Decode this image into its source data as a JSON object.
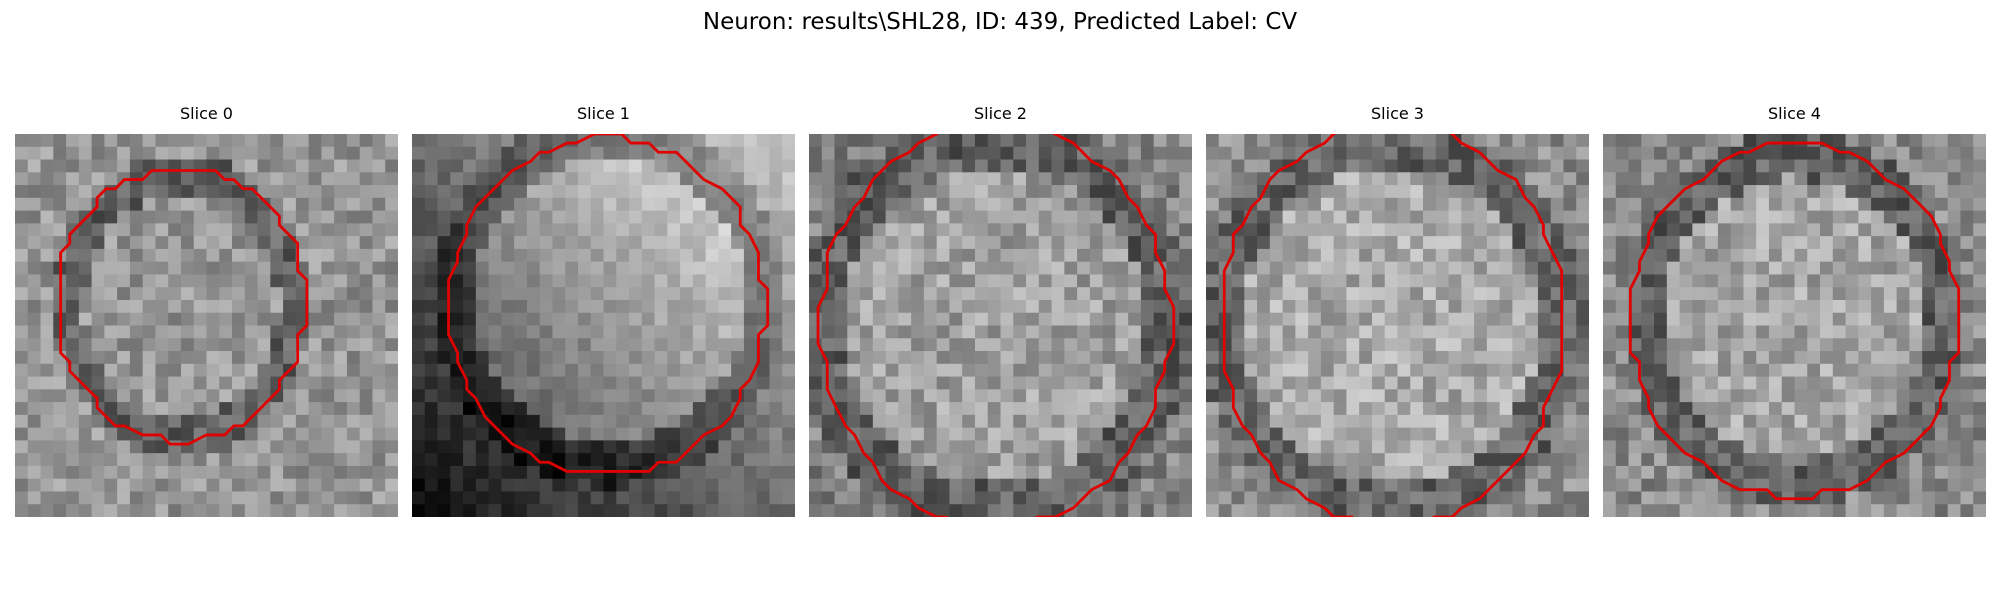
{
  "figure": {
    "title": "Neuron: results\\SHL28, ID: 439, Predicted Label: CV",
    "contour_color": "#e00000"
  },
  "slices": [
    {
      "title": "Slice 0"
    },
    {
      "title": "Slice 1"
    },
    {
      "title": "Slice 2"
    },
    {
      "title": "Slice 3"
    },
    {
      "title": "Slice 4"
    }
  ]
}
